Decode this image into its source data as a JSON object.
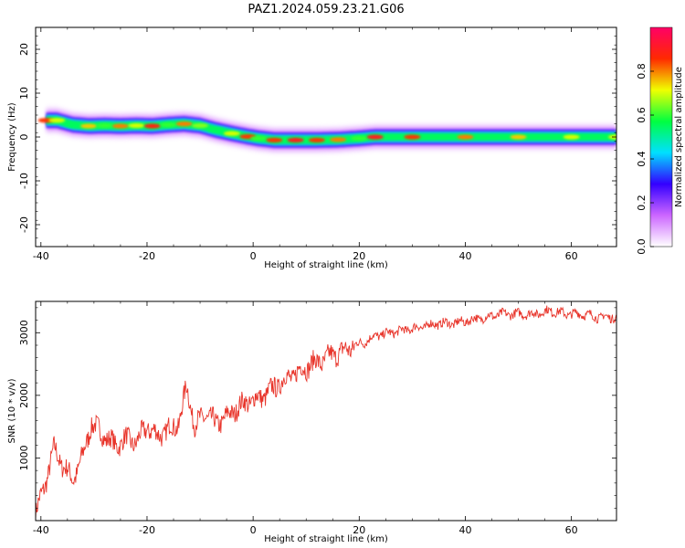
{
  "figure_title": "PAZ1.2024.059.23.21.G06",
  "chart_data": [
    {
      "type": "heatmap",
      "xlabel": "Height of straight line (km)",
      "ylabel": "Frequency (Hz)",
      "xlim": [
        -41,
        68.5
      ],
      "ylim": [
        -25,
        25
      ],
      "xticks": [
        -40,
        -20,
        0,
        20,
        40,
        60
      ],
      "yticks": [
        -20,
        -10,
        0,
        10,
        20
      ],
      "colorbar": {
        "label": "Normalized spectral amplitude",
        "range": [
          0,
          1
        ],
        "ticks": [
          0.0,
          0.2,
          0.4,
          0.6,
          0.8
        ],
        "tick_labels": [
          "0.0",
          "0.2",
          "0.4",
          "0.6",
          "0.8"
        ],
        "colormap": "hsv-rainbow",
        "stops": [
          "#ffffff",
          "#cc66ff",
          "#3300ff",
          "#00e0ff",
          "#00ff40",
          "#f0ff00",
          "#ff2a00",
          "#ff0066"
        ]
      },
      "ridge": {
        "x": [
          -39,
          -37,
          -34,
          -31,
          -28,
          -25,
          -22,
          -19,
          -16,
          -13,
          -10,
          -7,
          -4,
          -1,
          1,
          4,
          8,
          12,
          16,
          20,
          23,
          30,
          40,
          50,
          60,
          68.5
        ],
        "y": [
          3.8,
          3.8,
          2.8,
          2.5,
          2.6,
          2.5,
          2.6,
          2.5,
          2.8,
          3.0,
          2.6,
          1.6,
          0.8,
          0.1,
          -0.3,
          -0.7,
          -0.7,
          -0.7,
          -0.6,
          -0.3,
          0.0,
          0.0,
          0.0,
          0.0,
          0.0,
          0.0
        ],
        "amp": [
          0.85,
          0.7,
          0.55,
          0.75,
          0.6,
          0.8,
          0.7,
          0.88,
          0.6,
          0.8,
          0.65,
          0.55,
          0.7,
          0.85,
          0.6,
          0.85,
          0.9,
          0.85,
          0.8,
          0.6,
          0.9,
          0.85,
          0.8,
          0.75,
          0.7,
          0.7
        ]
      }
    },
    {
      "type": "line",
      "xlabel": "Height of straight line (km)",
      "ylabel": "SNR (10 * v/v)",
      "xlim": [
        -41,
        68.5
      ],
      "ylim": [
        0,
        3500
      ],
      "xticks": [
        -40,
        -20,
        0,
        20,
        40,
        60
      ],
      "yticks": [
        1000,
        2000,
        3000
      ],
      "color": "#e8342a",
      "series": [
        {
          "x": [
            -41,
            -39,
            -37.5,
            -36,
            -34,
            -32,
            -30.5,
            -28,
            -26,
            -24,
            -22,
            -20,
            -18,
            -16,
            -14,
            -12.5,
            -11,
            -9,
            -7,
            -5,
            -3,
            -1,
            1,
            3,
            5,
            7,
            9,
            11,
            13,
            15,
            17,
            19,
            21,
            23,
            26,
            29,
            32,
            35,
            38,
            41,
            44,
            47,
            50,
            53,
            56,
            59,
            62,
            65,
            68.5
          ],
          "y": [
            100,
            650,
            1150,
            900,
            650,
            1050,
            1550,
            1350,
            1200,
            1300,
            1250,
            1500,
            1350,
            1450,
            1550,
            2150,
            1500,
            1700,
            1550,
            1650,
            1800,
            1900,
            1950,
            2050,
            2200,
            2300,
            2400,
            2500,
            2550,
            2650,
            2700,
            2800,
            2850,
            2950,
            3000,
            3050,
            3100,
            3150,
            3150,
            3200,
            3250,
            3300,
            3300,
            3300,
            3350,
            3300,
            3300,
            3250,
            3250
          ]
        }
      ]
    }
  ]
}
